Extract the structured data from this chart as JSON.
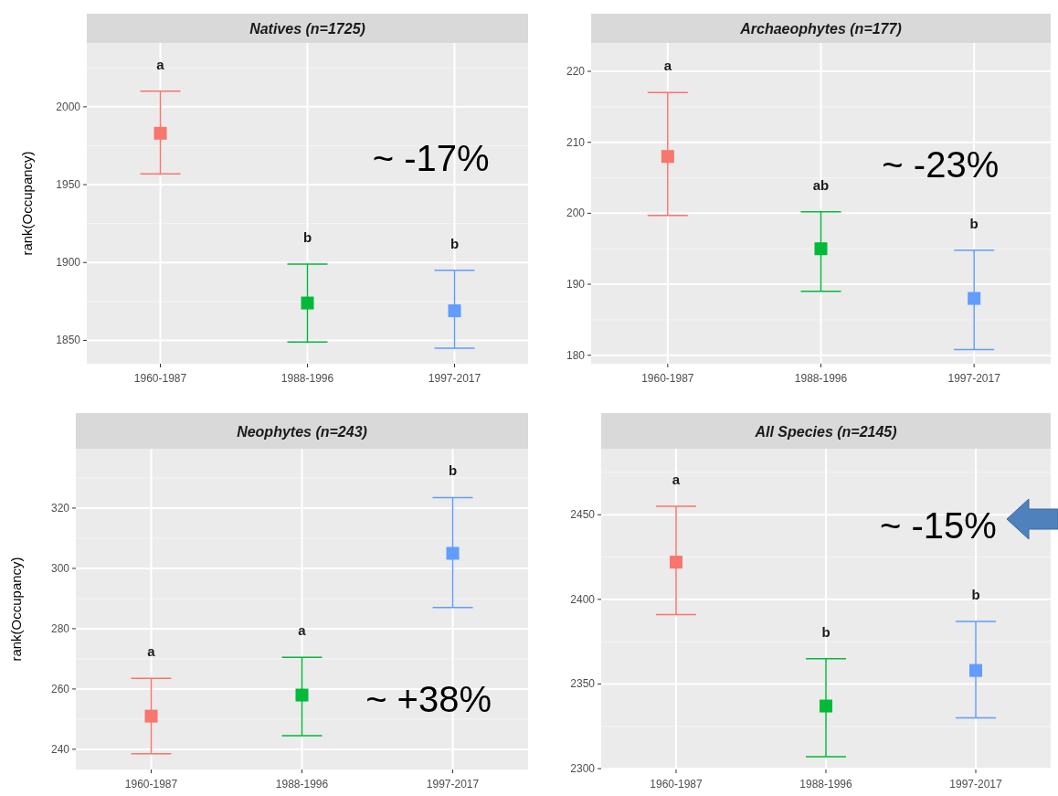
{
  "chart_data": [
    {
      "type": "scatter",
      "title": "Natives (n=1725)",
      "ylabel": "rank(Occupancy)",
      "categories": [
        "1960-1987",
        "1988-1996",
        "1997-2017"
      ],
      "values": [
        1983,
        1874,
        1869
      ],
      "errors": [
        [
          1957,
          2010
        ],
        [
          1849,
          1899
        ],
        [
          1845,
          1895
        ]
      ],
      "colors": [
        "#f8766d",
        "#00ba38",
        "#619cff"
      ],
      "marker": "square",
      "grid": true,
      "ylim": [
        1835,
        2041
      ],
      "yticks": [
        1850,
        1900,
        1950,
        2000
      ],
      "annotations": [
        "a",
        "b",
        "b",
        "~ -17%"
      ]
    },
    {
      "type": "scatter",
      "title": "Archaeophytes (n=177)",
      "categories": [
        "1960-1987",
        "1988-1996",
        "1997-2017"
      ],
      "values": [
        208,
        195,
        188
      ],
      "errors": [
        [
          199.7,
          217
        ],
        [
          189,
          200.2
        ],
        [
          180.8,
          194.8
        ]
      ],
      "colors": [
        "#f8766d",
        "#00ba38",
        "#619cff"
      ],
      "marker": "square",
      "grid": true,
      "ylim": [
        178.8,
        224
      ],
      "yticks": [
        180,
        190,
        200,
        210,
        220
      ],
      "annotations": [
        "a",
        "ab",
        "b",
        "~ -23%"
      ]
    },
    {
      "type": "scatter",
      "title": "Neophytes (n=243)",
      "ylabel": "rank(Occupancy)",
      "categories": [
        "1960-1987",
        "1988-1996",
        "1997-2017"
      ],
      "values": [
        251,
        258,
        305
      ],
      "errors": [
        [
          238.5,
          263.5
        ],
        [
          244.5,
          270.5
        ],
        [
          287,
          323.5
        ]
      ],
      "colors": [
        "#f8766d",
        "#00ba38",
        "#619cff"
      ],
      "marker": "square",
      "grid": true,
      "ylim": [
        233.3,
        339.7
      ],
      "yticks": [
        240,
        260,
        280,
        300,
        320
      ],
      "annotations": [
        "a",
        "a",
        "b",
        "~ +38%"
      ]
    },
    {
      "type": "scatter",
      "title": "All Species (n=2145)",
      "categories": [
        "1960-1987",
        "1988-1996",
        "1997-2017"
      ],
      "values": [
        2422,
        2337,
        2358
      ],
      "errors": [
        [
          2391,
          2455
        ],
        [
          2307,
          2365
        ],
        [
          2330,
          2387
        ]
      ],
      "colors": [
        "#f8766d",
        "#00ba38",
        "#619cff"
      ],
      "marker": "square",
      "grid": true,
      "ylim": [
        2299.5,
        2489
      ],
      "yticks": [
        2300,
        2350,
        2400,
        2450
      ],
      "annotations": [
        "a",
        "b",
        "b",
        "~ -15%"
      ]
    }
  ]
}
